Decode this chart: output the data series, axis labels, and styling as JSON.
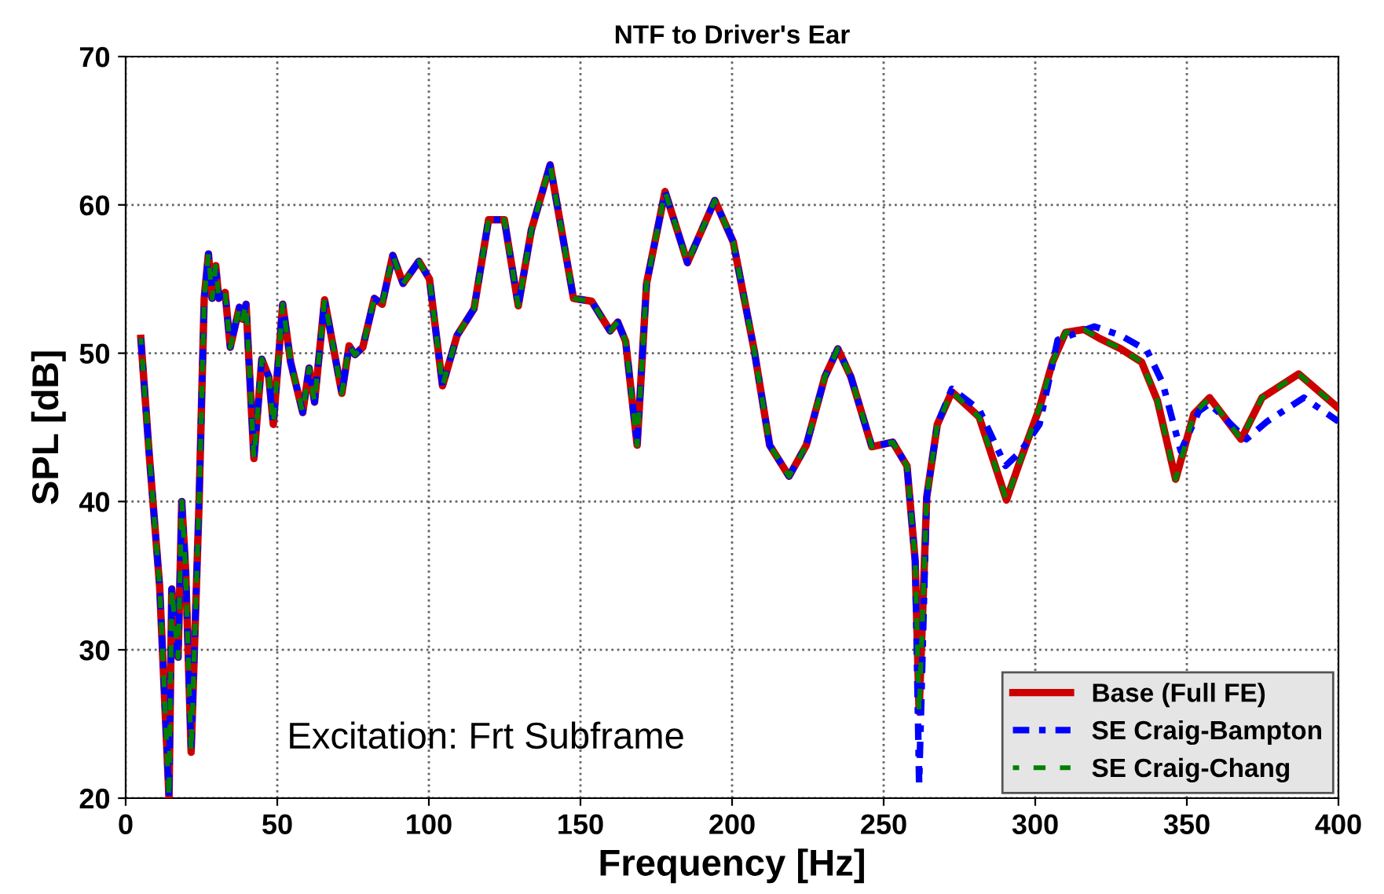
{
  "chart_data": {
    "type": "line",
    "title": "NTF to Driver's Ear",
    "xlabel": "Frequency [Hz]",
    "ylabel": "SPL [dB]",
    "xlim": [
      0,
      400
    ],
    "xticks": [
      0,
      50,
      100,
      150,
      200,
      250,
      300,
      350,
      400
    ],
    "ylim": [
      20,
      70
    ],
    "yticks": [
      20,
      30,
      40,
      50,
      60,
      70
    ],
    "grid": true,
    "legend": "bottom right",
    "marker": "none",
    "annotations": [
      "Excitation: Frt Subframe"
    ],
    "series": [
      {
        "name": "Base (Full FE)",
        "color": "#cc0000",
        "line_style": "solid",
        "x": [
          5,
          7.8,
          11.2,
          14.3,
          15.2,
          17.3,
          18.5,
          19.8,
          21.6,
          24.2,
          25.9,
          27.3,
          28.5,
          29.7,
          30.7,
          32.8,
          34.5,
          37.5,
          38.5,
          39.7,
          42.3,
          44.9,
          47.2,
          48.7,
          51.8,
          54.4,
          58.4,
          60.5,
          62.3,
          65.6,
          71.3,
          73.7,
          75.6,
          78.2,
          82,
          84.6,
          88.1,
          91.5,
          96.7,
          100.2,
          104.5,
          109.3,
          114.9,
          119.7,
          124.9,
          129.5,
          133.8,
          140,
          147.7,
          153.7,
          159.8,
          162.3,
          164.9,
          168.7,
          171.8,
          177.9,
          185.3,
          194.3,
          200.4,
          207.3,
          212.4,
          218.8,
          224.5,
          230.6,
          234.9,
          239.2,
          246.1,
          253,
          257.7,
          260.4,
          261.7,
          264.2,
          267.7,
          272.5,
          281.5,
          290.5,
          295.3,
          301.4,
          305.7,
          310,
          316.1,
          321.2,
          328.2,
          335.1,
          340.3,
          346.3,
          352.3,
          357.5,
          362.7,
          367.9,
          374.8,
          386.9,
          400
        ],
        "values": [
          51,
          43.1,
          34.3,
          20,
          34.1,
          29.5,
          40,
          35.3,
          23.1,
          39.9,
          53.7,
          56.7,
          53.7,
          55.9,
          53.7,
          54.1,
          50.4,
          53.1,
          52.3,
          53.3,
          42.9,
          49.6,
          48.4,
          45.2,
          53.3,
          49.4,
          46,
          49,
          46.7,
          53.6,
          47.3,
          50.5,
          49.9,
          50.4,
          53.7,
          53.3,
          56.6,
          54.7,
          56.2,
          55,
          47.8,
          51.2,
          53,
          59,
          59,
          53.2,
          58.3,
          62.7,
          53.7,
          53.5,
          51.5,
          52.1,
          50.8,
          43.8,
          54.7,
          60.9,
          56.1,
          60.3,
          57.5,
          50.2,
          43.8,
          41.7,
          43.8,
          48.4,
          50.3,
          48.4,
          43.7,
          44,
          42.4,
          36,
          25.8,
          40.3,
          45.2,
          47.4,
          45.7,
          40.1,
          42.9,
          46.3,
          49.4,
          51.4,
          51.6,
          51,
          50.3,
          49.4,
          46.8,
          41.5,
          45.9,
          47,
          45.6,
          44.2,
          47,
          48.6,
          46.3
        ]
      },
      {
        "name": "SE Craig-Bampton",
        "color": "#0000ff",
        "line_style": "dashdot",
        "x": [
          5,
          7.8,
          11.2,
          14.3,
          15.2,
          17.3,
          18.5,
          19.8,
          21.6,
          24.2,
          25.9,
          27.3,
          28.5,
          29.7,
          30.7,
          32.8,
          34.5,
          37.5,
          38.5,
          39.7,
          42.3,
          44.9,
          47.2,
          48.7,
          51.8,
          54.4,
          58.4,
          60.5,
          62.3,
          65.6,
          71.3,
          73.7,
          75.6,
          78.2,
          82,
          84.6,
          88.1,
          91.5,
          96.7,
          100.2,
          104.5,
          109.3,
          114.9,
          119.7,
          124.9,
          129.5,
          133.8,
          140,
          147.7,
          153.7,
          159.8,
          162.3,
          164.9,
          168.7,
          171.8,
          177.9,
          185.3,
          194.3,
          200.4,
          207.3,
          212.4,
          218.8,
          224.5,
          230.6,
          234.9,
          239.2,
          246.1,
          253,
          257.7,
          260.4,
          261.7,
          264.2,
          267.7,
          272.5,
          281.5,
          290.2,
          295.3,
          301.4,
          307.4,
          319.5,
          328.2,
          336.8,
          342,
          348,
          354,
          357.5,
          369.6,
          376.5,
          388.6,
          400
        ],
        "values": [
          51,
          43.1,
          34.3,
          20,
          34.1,
          29.5,
          40,
          35.3,
          23.1,
          39.9,
          53.7,
          56.7,
          53.7,
          55.9,
          53.7,
          54.1,
          50.4,
          53.1,
          52.3,
          53.3,
          42.9,
          49.6,
          48.4,
          45.2,
          53.3,
          49.4,
          46,
          49,
          46.7,
          53.6,
          47.3,
          50.5,
          49.9,
          50.4,
          53.7,
          53.3,
          56.6,
          54.7,
          56.2,
          55,
          47.8,
          51.2,
          53,
          59,
          59,
          53.2,
          58.3,
          62.7,
          53.7,
          53.5,
          51.5,
          52.1,
          50.8,
          43.8,
          54.7,
          60.9,
          56.1,
          60.3,
          57.5,
          50.2,
          43.8,
          41.7,
          43.8,
          48.4,
          50.3,
          48.4,
          43.7,
          44,
          42.4,
          36,
          21,
          40.3,
          45.2,
          47.6,
          46.2,
          42.4,
          43.4,
          45.2,
          50.9,
          51.8,
          51.2,
          50.2,
          48,
          43.4,
          46.1,
          46.6,
          44.2,
          45.4,
          47,
          45.4
        ]
      },
      {
        "name": "SE Craig-Chang",
        "color": "#008000",
        "line_style": "dashdot",
        "x": [
          5,
          7.8,
          11.2,
          14.3,
          15.2,
          17.3,
          18.5,
          19.8,
          21.6,
          24.2,
          25.9,
          27.3,
          28.5,
          29.7,
          30.7,
          32.8,
          34.5,
          37.5,
          38.5,
          39.7,
          42.3,
          44.9,
          47.2,
          48.7,
          51.8,
          54.4,
          58.4,
          60.5,
          62.3,
          65.6,
          71.3,
          73.7,
          75.6,
          78.2,
          82,
          84.6,
          88.1,
          91.5,
          96.7,
          100.2,
          104.5,
          109.3,
          114.9,
          119.7,
          124.9,
          129.5,
          133.8,
          140,
          147.7,
          153.7,
          159.8,
          162.3,
          164.9,
          168.7,
          171.8,
          177.9,
          185.3,
          194.3,
          200.4,
          207.3,
          212.4,
          218.8,
          224.5,
          230.6,
          234.9,
          239.2,
          246.1,
          253,
          257.7,
          260.4,
          261.7,
          264.2,
          267.7,
          272.5,
          281.5,
          290.5,
          295.3,
          301.4,
          305.7,
          310,
          316.1,
          321.2,
          328.2,
          335.1,
          340.3,
          346.3,
          352.3,
          357.5,
          362.7,
          367.9,
          374.8,
          386.9,
          400
        ],
        "values": [
          51,
          43.1,
          34.3,
          20,
          34.1,
          29.5,
          40,
          35.3,
          23.1,
          39.9,
          53.7,
          56.7,
          53.7,
          55.9,
          53.7,
          54.1,
          50.4,
          53.1,
          52.3,
          53.3,
          42.9,
          49.6,
          48.4,
          45.2,
          53.3,
          49.4,
          46,
          49,
          46.7,
          53.6,
          47.3,
          50.5,
          49.9,
          50.4,
          53.7,
          53.3,
          56.6,
          54.7,
          56.2,
          55,
          47.8,
          51.2,
          53,
          59,
          59,
          53.2,
          58.3,
          62.7,
          53.7,
          53.5,
          51.5,
          52.1,
          50.8,
          43.8,
          54.7,
          60.9,
          56.1,
          60.3,
          57.5,
          50.2,
          43.8,
          41.7,
          43.8,
          48.4,
          50.3,
          48.4,
          43.7,
          44,
          42.4,
          36,
          25.8,
          40.3,
          45.2,
          47.4,
          45.7,
          40.1,
          42.9,
          46.3,
          49.4,
          51.4,
          51.6,
          51,
          50.3,
          49.4,
          46.8,
          41.5,
          45.9,
          47,
          45.6,
          44.2,
          47,
          48.6,
          46.3
        ]
      }
    ]
  }
}
